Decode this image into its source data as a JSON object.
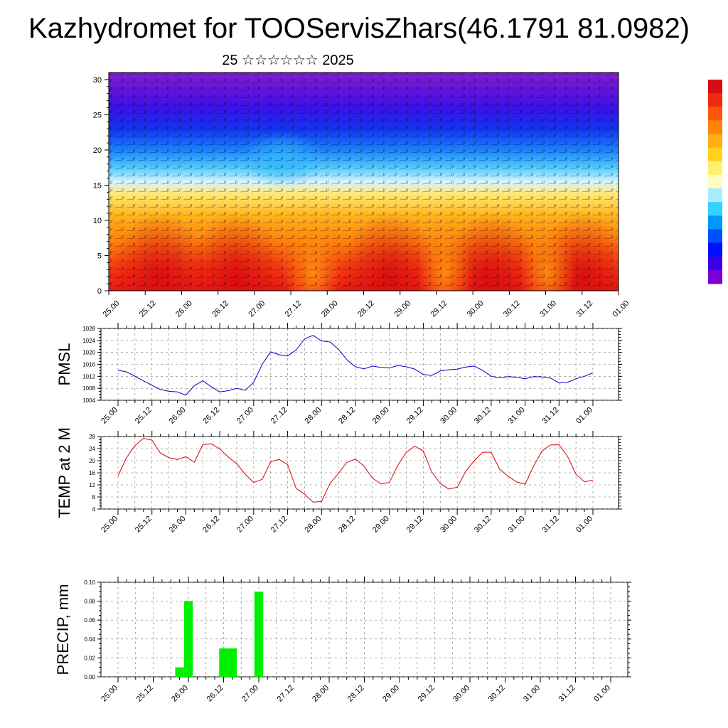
{
  "page": {
    "title": "Kazhydromet for TOOServisZhars(46.1791 81.0982)",
    "subtitle": "25 ☆☆☆☆☆☆ 2025"
  },
  "colors": {
    "pmsl_line": "#0000cc",
    "temp_line": "#dd0000",
    "precip_bar": "#00ee00",
    "colorbar": [
      "#7a00d6",
      "#3b00e6",
      "#0010ff",
      "#0050ff",
      "#0098ff",
      "#30d2ff",
      "#a8ecff",
      "#fffcc0",
      "#fff070",
      "#ffd21e",
      "#ffae12",
      "#ff840a",
      "#ff5808",
      "#f02c10",
      "#d80c12"
    ]
  },
  "chart_data": [
    {
      "type": "heatmap",
      "id": "vertical-cross-section",
      "y": [
        0,
        5,
        10,
        15,
        20,
        25,
        30
      ],
      "ylim": [
        0,
        31
      ],
      "x_tick_labels": [
        "25.00",
        "25.12",
        "26.00",
        "26.12",
        "27.00",
        "27.12",
        "28.00",
        "28.12",
        "29.00",
        "29.12",
        "30.00",
        "30.12",
        "31.00",
        "31.12",
        "01.00"
      ],
      "has_wind_barbs": true,
      "has_colorbar": true
    },
    {
      "type": "line",
      "id": "pmsl",
      "ylabel": "PMSL",
      "ylim": [
        1004,
        1028
      ],
      "yticks": [
        1004,
        1008,
        1012,
        1016,
        1020,
        1024,
        1028
      ],
      "grid": true,
      "x_tick_labels": [
        "25.00",
        "25.12",
        "26.00",
        "26.12",
        "27.00",
        "27.12",
        "28.00",
        "28.12",
        "29.00",
        "29.12",
        "30.00",
        "30.12",
        "31.00",
        "31.12",
        "01.00"
      ],
      "x": [
        0,
        3,
        6,
        9,
        12,
        15,
        18,
        21,
        24,
        27,
        30,
        33,
        36,
        39,
        42,
        45,
        48,
        51,
        54,
        57,
        60,
        63,
        66,
        69,
        72,
        75,
        78,
        81,
        84,
        87,
        90,
        93,
        96,
        99,
        102,
        105,
        108,
        111,
        114,
        117,
        120,
        123,
        126,
        129,
        132,
        135,
        138,
        141,
        144,
        147,
        150,
        153,
        156,
        159,
        162,
        165,
        168
      ],
      "series": [
        {
          "values": [
            1014.0,
            1013.5,
            1012.0,
            1010.5,
            1009.0,
            1007.6,
            1007.0,
            1006.8,
            1005.7,
            1008.9,
            1010.5,
            1008.5,
            1006.8,
            1007.2,
            1008.0,
            1007.3,
            1010.0,
            1016.0,
            1020.2,
            1019.2,
            1018.8,
            1020.8,
            1024.5,
            1025.7,
            1023.8,
            1023.5,
            1021.0,
            1017.5,
            1015.2,
            1014.5,
            1015.4,
            1015.0,
            1014.8,
            1015.6,
            1015.2,
            1014.4,
            1012.6,
            1012.3,
            1013.8,
            1014.2,
            1014.4,
            1015.1,
            1015.4,
            1014.0,
            1012.0,
            1011.5,
            1011.9,
            1011.7,
            1011.2,
            1011.9,
            1011.8,
            1011.4,
            1009.8,
            1010.0,
            1011.2,
            1012.0,
            1013.2
          ]
        }
      ]
    },
    {
      "type": "line",
      "id": "temp-2m",
      "ylabel": "TEMP at 2 M",
      "ylim": [
        4,
        28
      ],
      "yticks": [
        4,
        8,
        12,
        16,
        20,
        24,
        28
      ],
      "grid": true,
      "x_tick_labels": [
        "25.00",
        "25.12",
        "26.00",
        "26.12",
        "27.00",
        "27.12",
        "28.00",
        "28.12",
        "29.00",
        "29.12",
        "30.00",
        "30.12",
        "31.00",
        "31.12",
        "01.00"
      ],
      "x": [
        0,
        3,
        6,
        9,
        12,
        15,
        18,
        21,
        24,
        27,
        30,
        33,
        36,
        39,
        42,
        45,
        48,
        51,
        54,
        57,
        60,
        63,
        66,
        69,
        72,
        75,
        78,
        81,
        84,
        87,
        90,
        93,
        96,
        99,
        102,
        105,
        108,
        111,
        114,
        117,
        120,
        123,
        126,
        129,
        132,
        135,
        138,
        141,
        144,
        147,
        150,
        153,
        156,
        159,
        162,
        165,
        168
      ],
      "series": [
        {
          "values": [
            15.0,
            21.0,
            25.0,
            27.4,
            26.8,
            22.5,
            21.0,
            20.4,
            21.3,
            19.5,
            25.3,
            25.6,
            23.9,
            21.2,
            19.0,
            15.5,
            12.8,
            13.8,
            19.7,
            20.4,
            18.7,
            10.8,
            8.9,
            6.3,
            6.5,
            12.5,
            15.8,
            19.5,
            20.5,
            18.2,
            14.2,
            12.4,
            12.8,
            18.5,
            22.8,
            24.8,
            23.2,
            16.2,
            12.5,
            10.6,
            11.2,
            16.5,
            20.0,
            22.8,
            22.8,
            17.2,
            14.8,
            13.0,
            12.2,
            18.2,
            23.2,
            25.2,
            25.3,
            21.5,
            15.5,
            13.0,
            13.6
          ]
        }
      ]
    },
    {
      "type": "bar",
      "id": "precip",
      "ylabel": "PRECIP, mm",
      "ylim": [
        0,
        0.1
      ],
      "yticks": [
        "0.00",
        "0.02",
        "0.04",
        "0.06",
        "0.08",
        "0.10"
      ],
      "grid": true,
      "x_tick_labels": [
        "25.00",
        "25.12",
        "26.00",
        "26.12",
        "27.00",
        "27.12",
        "28.00",
        "28.12",
        "29.00",
        "29.12",
        "30.00",
        "30.12",
        "31.00",
        "31.12",
        "01.00"
      ],
      "bar_width_hours": 3,
      "bars": [
        {
          "x": 21,
          "value": 0.01
        },
        {
          "x": 24,
          "value": 0.08
        },
        {
          "x": 36,
          "value": 0.03
        },
        {
          "x": 39,
          "value": 0.03
        },
        {
          "x": 48,
          "value": 0.09
        }
      ]
    }
  ]
}
